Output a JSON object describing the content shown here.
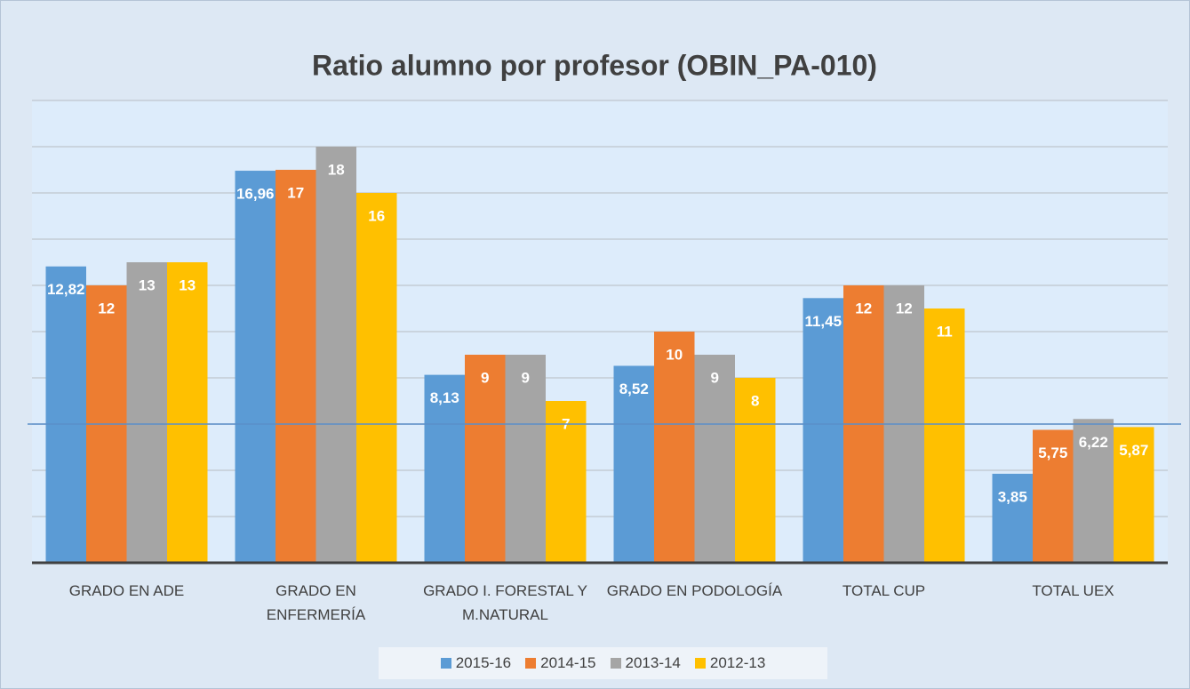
{
  "chart_data": {
    "type": "bar",
    "title": "Ratio alumno por profesor (OBIN_PA-010)",
    "categories": [
      "GRADO EN ADE",
      "GRADO EN ENFERMERÍA",
      "GRADO I. FORESTAL Y M.NATURAL",
      "GRADO EN PODOLOGÍA",
      "TOTAL CUP",
      "TOTAL UEX"
    ],
    "series": [
      {
        "name": "2015-16",
        "color": "#5b9bd5",
        "values": [
          12.82,
          16.96,
          8.13,
          8.52,
          11.45,
          3.85
        ],
        "value_labels": [
          "12,82",
          "16,96",
          "8,13",
          "8,52",
          "11,45",
          "3,85"
        ]
      },
      {
        "name": "2014-15",
        "color": "#ed7d31",
        "values": [
          12,
          17,
          9,
          10,
          12,
          5.75
        ],
        "value_labels": [
          "12",
          "17",
          "9",
          "10",
          "12",
          "5,75"
        ]
      },
      {
        "name": "2013-14",
        "color": "#a5a5a5",
        "values": [
          13,
          18,
          9,
          9,
          12,
          6.22
        ],
        "value_labels": [
          "13",
          "18",
          "9",
          "9",
          "12",
          "6,22"
        ]
      },
      {
        "name": "2012-13",
        "color": "#ffc000",
        "values": [
          13,
          16,
          7,
          8,
          11,
          5.87
        ],
        "value_labels": [
          "13",
          "16",
          "7",
          "8",
          "11",
          "5,87"
        ]
      }
    ],
    "ylim": [
      0,
      20
    ],
    "yticks": [
      0,
      2,
      4,
      6,
      8,
      10,
      12,
      14,
      16,
      18,
      20
    ],
    "grid": true,
    "reference_line": 6,
    "legend": "bottom"
  }
}
